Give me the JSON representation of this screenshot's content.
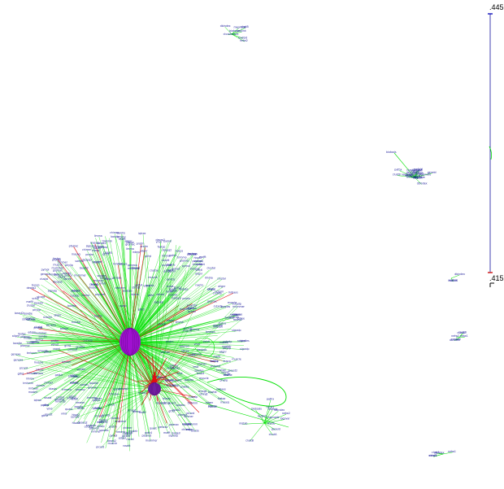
{
  "scale": {
    "max_label": ".445",
    "min_label": ".415"
  },
  "colors": {
    "background": "#ffffff",
    "edge_default": "#00e000",
    "edge_highlight": "#e01010",
    "label": "#1c1c9a",
    "hub_node": "#a010d0",
    "secondary_node": "#7020a0",
    "scale_top": "#2020c0",
    "scale_bottom": "#d02020",
    "scale_line": "#4040b0"
  },
  "graph": {
    "main_cluster_labels": [
      "ncbiml",
      "genexa",
      "protrn",
      "rnaseq",
      "kmerdb",
      "blastx",
      "alignr",
      "fastqc",
      "bowtie",
      "samtls",
      "vcfctl",
      "gtfrd",
      "bedops",
      "picard",
      "hisat2",
      "stringt",
      "deseq2",
      "edger",
      "limma",
      "gatk4",
      "trimmo",
      "cutadp",
      "spades",
      "velvet",
      "prokka",
      "busco",
      "quast",
      "mummer",
      "muscle",
      "mafft",
      "raxml",
      "iqtree",
      "mrbays",
      "beast2",
      "phylip",
      "clustal",
      "hmmer",
      "pfamsc",
      "interp",
      "signalp",
      "tmhmm",
      "psipred",
      "rosett",
      "modelr",
      "pymol",
      "chimer",
      "vmd",
      "gromac"
    ],
    "small_cluster_labels": [
      "biotools",
      "mapnode",
      "seqlink",
      "rnafold",
      "dbindex",
      "clustA",
      "clustB",
      "netw1",
      "netw2",
      "loopvar",
      "linkdb",
      "mqtab",
      "pathx",
      "geneid"
    ]
  }
}
